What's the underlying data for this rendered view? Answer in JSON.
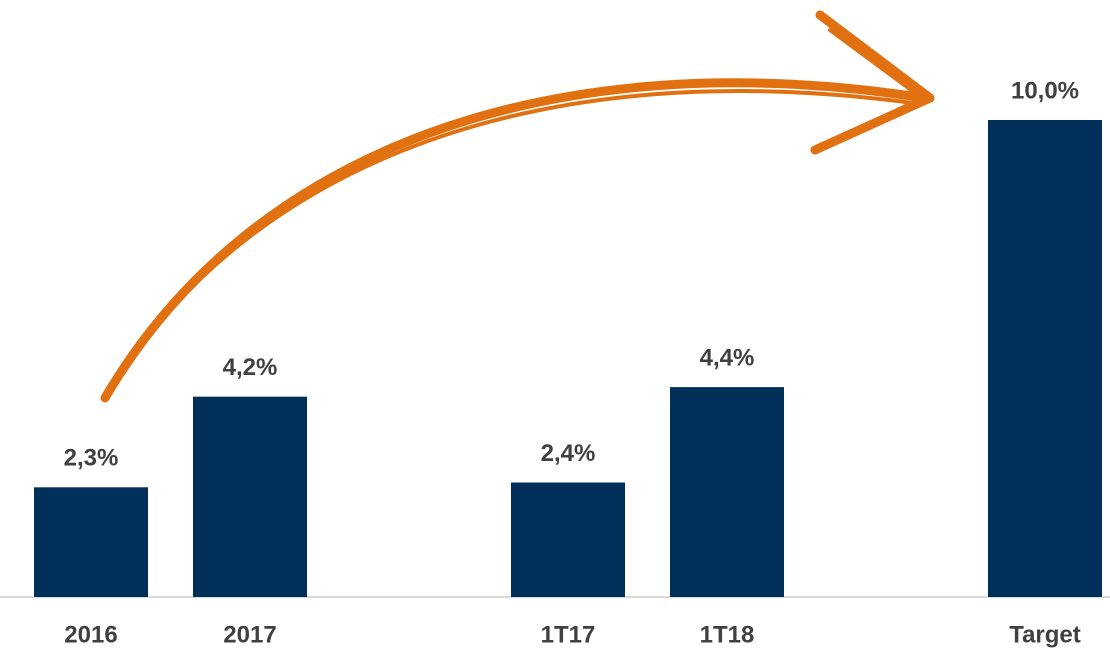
{
  "chart_data": {
    "type": "bar",
    "categories": [
      "2016",
      "2017",
      null,
      "1T17",
      "1T18",
      null,
      "Target"
    ],
    "values": [
      2.3,
      4.2,
      null,
      2.4,
      4.4,
      null,
      10.0
    ],
    "value_labels": [
      "2,3%",
      "4,2%",
      null,
      "2,4%",
      "4,4%",
      null,
      "10,0%"
    ],
    "color": "#00305a",
    "ylim": [
      0,
      10
    ]
  }
}
